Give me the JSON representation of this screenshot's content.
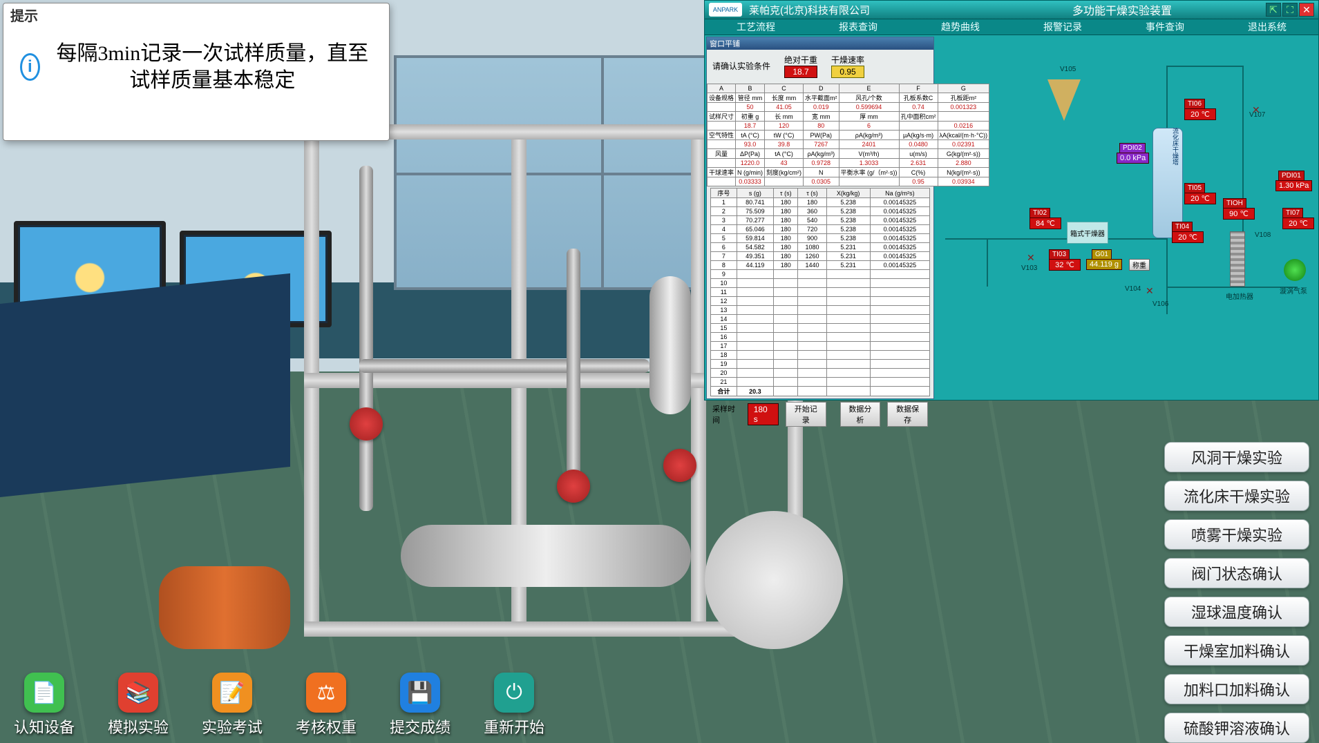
{
  "tip": {
    "title": "提示",
    "text": "每隔3min记录一次试样质量，直至试样质量基本稳定"
  },
  "scada": {
    "company": "莱帕克(北京)科技有限公司",
    "logo": "ANPARK",
    "device_title": "多功能干燥实验装置",
    "menu": [
      "工艺流程",
      "报表查询",
      "趋势曲线",
      "报警记录",
      "事件查询",
      "退出系统"
    ]
  },
  "datawin": {
    "title": "窗口平铺",
    "section_label": "请确认实验条件",
    "col1_label": "绝对干重",
    "col1_value": "18.7",
    "col2_label": "干燥速率",
    "col2_value": "0.95",
    "param_headers": [
      "A",
      "B",
      "C",
      "D",
      "E",
      "F",
      "G"
    ],
    "param_rows_top": [
      [
        "设备规格",
        "管径 mm",
        "长度 mm",
        "水平截面m²",
        "风孔/个数",
        "孔板系数C",
        "孔板距m²"
      ],
      [
        "",
        "50",
        "41.05",
        "0.019",
        "0.599694",
        "0.74",
        "0.001323"
      ],
      [
        "试样尺寸",
        "初重 g",
        "长 mm",
        "宽 mm",
        "厚 mm",
        "孔中面积cm²",
        ""
      ],
      [
        "",
        "18.7",
        "120",
        "80",
        "6",
        "",
        "0.0216"
      ],
      [
        "空气特性",
        "tA (°C)",
        "tW (°C)",
        "PW(Pa)",
        "ρA(kg/m³)",
        "μA(kg/s·m)",
        "λA(kcal/(m·h·°C))"
      ],
      [
        "",
        "93.0",
        "39.8",
        "7267",
        "2401",
        "0.0480",
        "0.02391"
      ],
      [
        "风量",
        "ΔP(Pa)",
        "tA (°C)",
        "ρA(kg/m³)",
        "V(m³/h)",
        "u(m/s)",
        "G(kg/(m²·s))"
      ],
      [
        "",
        "1220.0",
        "43",
        "0.9728",
        "1.3033",
        "2.631",
        "2.880"
      ],
      [
        "干球速率",
        "N (g/min)",
        "刻度(kg/cm²)",
        "N",
        "平衡水率 (g/（m²·s))",
        "C(%)",
        "N(kg/(m²·s))"
      ],
      [
        "",
        "0.03333",
        "",
        "0.0305",
        "",
        "0.95",
        "0.03934"
      ]
    ],
    "series_headers": [
      "序号",
      "s (g)",
      "τ (s)",
      "τ (s)",
      "X(kg/kg)",
      "Na (g/m²s)"
    ],
    "series_rows": [
      [
        "1",
        "80.741",
        "180",
        "180",
        "5.238",
        "0.00145325"
      ],
      [
        "2",
        "75.509",
        "180",
        "360",
        "5.238",
        "0.00145325"
      ],
      [
        "3",
        "70.277",
        "180",
        "540",
        "5.238",
        "0.00145325"
      ],
      [
        "4",
        "65.046",
        "180",
        "720",
        "5.238",
        "0.00145325"
      ],
      [
        "5",
        "59.814",
        "180",
        "900",
        "5.238",
        "0.00145325"
      ],
      [
        "6",
        "54.582",
        "180",
        "1080",
        "5.231",
        "0.00145325"
      ],
      [
        "7",
        "49.351",
        "180",
        "1260",
        "5.231",
        "0.00145325"
      ],
      [
        "8",
        "44.119",
        "180",
        "1440",
        "5.231",
        "0.00145325"
      ],
      [
        "9",
        "",
        "",
        "",
        "",
        ""
      ],
      [
        "10",
        "",
        "",
        "",
        "",
        ""
      ],
      [
        "11",
        "",
        "",
        "",
        "",
        ""
      ],
      [
        "12",
        "",
        "",
        "",
        "",
        ""
      ],
      [
        "13",
        "",
        "",
        "",
        "",
        ""
      ],
      [
        "14",
        "",
        "",
        "",
        "",
        ""
      ],
      [
        "15",
        "",
        "",
        "",
        "",
        ""
      ],
      [
        "16",
        "",
        "",
        "",
        "",
        ""
      ],
      [
        "17",
        "",
        "",
        "",
        "",
        ""
      ],
      [
        "18",
        "",
        "",
        "",
        "",
        ""
      ],
      [
        "19",
        "",
        "",
        "",
        "",
        ""
      ],
      [
        "20",
        "",
        "",
        "",
        "",
        ""
      ],
      [
        "21",
        "",
        "",
        "",
        "",
        ""
      ]
    ],
    "sum_row": [
      "合计",
      "20.3",
      "",
      "",
      "",
      ""
    ],
    "sample_time_label": "采样时间",
    "sample_time_value": "180 s",
    "btn_start": "开始记录",
    "btn_analyze": "数据分析",
    "btn_save": "数据保存"
  },
  "tags": {
    "TI02_label": "TI02",
    "TI02_val": "84 ℃",
    "TI03_label": "TI03",
    "TI03_val": "32 ℃",
    "G01_label": "G01",
    "G01_val": "44.119 g",
    "TI04_label": "TI04",
    "TI04_val": "20 ℃",
    "TI05_label": "TI05",
    "TI05_val": "20 ℃",
    "TI06_label": "TI06",
    "TI06_val": "20 ℃",
    "TIOH_label": "TIOH",
    "TIOH_val": "90 ℃",
    "TI07_label": "TI07",
    "TI07_val": "20 ℃",
    "PDI01_label": "PDI01",
    "PDI01_val": "1.30 kPa",
    "PDI02_label": "PDI02",
    "PDI02_val": "0.0 kPa",
    "box_label": "箱式干燥器",
    "heater_label": "电加热器",
    "fan_label": "漩涡气泵",
    "vessel_label": "流化床干燥塔",
    "weigh_btn": "称重",
    "va_labels": {
      "V105": "V105",
      "V103": "V103",
      "V104": "V104",
      "V107": "V107",
      "V108": "V108",
      "V106": "V106"
    }
  },
  "bottom": [
    {
      "label": "认知设备",
      "color": "#40c050",
      "glyph": "📄"
    },
    {
      "label": "模拟实验",
      "color": "#e04030",
      "glyph": "📚"
    },
    {
      "label": "实验考试",
      "color": "#f09020",
      "glyph": "📝"
    },
    {
      "label": "考核权重",
      "color": "#f07020",
      "glyph": "⚖"
    },
    {
      "label": "提交成绩",
      "color": "#2080e0",
      "glyph": "💾"
    },
    {
      "label": "重新开始",
      "color": "#20a090",
      "glyph": "⏻"
    }
  ],
  "side_buttons": [
    "风洞干燥实验",
    "流化床干燥实验",
    "喷雾干燥实验",
    "阀门状态确认",
    "湿球温度确认",
    "干燥室加料确认",
    "加料口加料确认",
    "硫酸钾溶液确认"
  ]
}
